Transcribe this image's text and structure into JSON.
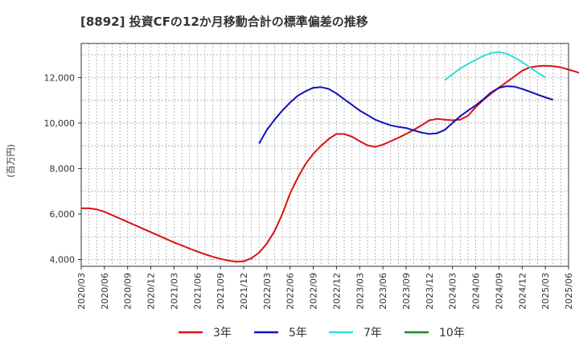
{
  "chart_data": {
    "type": "line",
    "title": "[8892]  投資CFの12か月移動合計の標準偏差の推移",
    "ylabel": "(百万円)",
    "xlabel": "",
    "ylim": [
      3700,
      13500
    ],
    "yticks": [
      4000,
      6000,
      8000,
      10000,
      12000
    ],
    "ytick_labels": [
      "4,000",
      "6,000",
      "8,000",
      "10,000",
      "12,000"
    ],
    "x_range": [
      "2020/03",
      "2025/06"
    ],
    "xtick_labels": [
      "2020/03",
      "2020/06",
      "2020/09",
      "2020/12",
      "2021/03",
      "2021/06",
      "2021/09",
      "2021/12",
      "2022/03",
      "2022/06",
      "2022/09",
      "2022/12",
      "2023/03",
      "2023/06",
      "2023/09",
      "2023/12",
      "2024/03",
      "2024/06",
      "2024/09",
      "2024/12",
      "2025/03",
      "2025/06"
    ],
    "grid": true,
    "legend_position": "bottom",
    "series": [
      {
        "name": "3年",
        "color": "#dd1111",
        "points": [
          [
            "2020/03",
            6250
          ],
          [
            "2020/04",
            6250
          ],
          [
            "2020/05",
            6200
          ],
          [
            "2020/06",
            6100
          ],
          [
            "2020/07",
            5950
          ],
          [
            "2020/08",
            5800
          ],
          [
            "2020/09",
            5650
          ],
          [
            "2020/10",
            5500
          ],
          [
            "2020/11",
            5350
          ],
          [
            "2020/12",
            5200
          ],
          [
            "2021/01",
            5050
          ],
          [
            "2021/02",
            4900
          ],
          [
            "2021/03",
            4750
          ],
          [
            "2021/04",
            4620
          ],
          [
            "2021/05",
            4480
          ],
          [
            "2021/06",
            4350
          ],
          [
            "2021/07",
            4230
          ],
          [
            "2021/08",
            4120
          ],
          [
            "2021/09",
            4030
          ],
          [
            "2021/10",
            3950
          ],
          [
            "2021/11",
            3900
          ],
          [
            "2021/12",
            3920
          ],
          [
            "2022/01",
            4050
          ],
          [
            "2022/02",
            4300
          ],
          [
            "2022/03",
            4700
          ],
          [
            "2022/04",
            5250
          ],
          [
            "2022/05",
            6000
          ],
          [
            "2022/06",
            6900
          ],
          [
            "2022/07",
            7600
          ],
          [
            "2022/08",
            8200
          ],
          [
            "2022/09",
            8650
          ],
          [
            "2022/10",
            9000
          ],
          [
            "2022/11",
            9300
          ],
          [
            "2022/12",
            9520
          ],
          [
            "2023/01",
            9520
          ],
          [
            "2023/02",
            9400
          ],
          [
            "2023/03",
            9200
          ],
          [
            "2023/04",
            9020
          ],
          [
            "2023/05",
            8950
          ],
          [
            "2023/06",
            9050
          ],
          [
            "2023/07",
            9200
          ],
          [
            "2023/08",
            9350
          ],
          [
            "2023/09",
            9520
          ],
          [
            "2023/10",
            9700
          ],
          [
            "2023/11",
            9900
          ],
          [
            "2023/12",
            10120
          ],
          [
            "2024/01",
            10180
          ],
          [
            "2024/02",
            10150
          ],
          [
            "2024/03",
            10120
          ],
          [
            "2024/04",
            10150
          ],
          [
            "2024/05",
            10320
          ],
          [
            "2024/06",
            10700
          ],
          [
            "2024/07",
            11020
          ],
          [
            "2024/08",
            11300
          ],
          [
            "2024/09",
            11550
          ],
          [
            "2024/10",
            11800
          ],
          [
            "2024/11",
            12050
          ],
          [
            "2024/12",
            12300
          ],
          [
            "2025/01",
            12450
          ],
          [
            "2025/02",
            12500
          ],
          [
            "2025/03",
            12520
          ],
          [
            "2025/04",
            12500
          ],
          [
            "2025/05",
            12450
          ],
          [
            "2025/06",
            12350
          ],
          [
            "2025/07",
            12250
          ],
          [
            "2025/08",
            12120
          ]
        ]
      },
      {
        "name": "5年",
        "color": "#1111bb",
        "points": [
          [
            "2022/02",
            9100
          ],
          [
            "2022/03",
            9700
          ],
          [
            "2022/04",
            10150
          ],
          [
            "2022/05",
            10550
          ],
          [
            "2022/06",
            10900
          ],
          [
            "2022/07",
            11200
          ],
          [
            "2022/08",
            11400
          ],
          [
            "2022/09",
            11550
          ],
          [
            "2022/10",
            11580
          ],
          [
            "2022/11",
            11500
          ],
          [
            "2022/12",
            11300
          ],
          [
            "2023/01",
            11050
          ],
          [
            "2023/02",
            10800
          ],
          [
            "2023/03",
            10550
          ],
          [
            "2023/04",
            10350
          ],
          [
            "2023/05",
            10150
          ],
          [
            "2023/06",
            10020
          ],
          [
            "2023/07",
            9900
          ],
          [
            "2023/08",
            9830
          ],
          [
            "2023/09",
            9780
          ],
          [
            "2023/10",
            9680
          ],
          [
            "2023/11",
            9580
          ],
          [
            "2023/12",
            9520
          ],
          [
            "2024/01",
            9550
          ],
          [
            "2024/02",
            9700
          ],
          [
            "2024/03",
            10000
          ],
          [
            "2024/04",
            10300
          ],
          [
            "2024/05",
            10550
          ],
          [
            "2024/06",
            10780
          ],
          [
            "2024/07",
            11050
          ],
          [
            "2024/08",
            11350
          ],
          [
            "2024/09",
            11550
          ],
          [
            "2024/10",
            11620
          ],
          [
            "2024/11",
            11600
          ],
          [
            "2024/12",
            11500
          ],
          [
            "2025/01",
            11380
          ],
          [
            "2025/02",
            11250
          ],
          [
            "2025/03",
            11130
          ],
          [
            "2025/04",
            11020
          ]
        ]
      },
      {
        "name": "7年",
        "color": "#33dddd",
        "points": [
          [
            "2024/02",
            11880
          ],
          [
            "2024/03",
            12150
          ],
          [
            "2024/04",
            12400
          ],
          [
            "2024/05",
            12600
          ],
          [
            "2024/06",
            12780
          ],
          [
            "2024/07",
            12950
          ],
          [
            "2024/08",
            13080
          ],
          [
            "2024/09",
            13120
          ],
          [
            "2024/10",
            13050
          ],
          [
            "2024/11",
            12880
          ],
          [
            "2024/12",
            12680
          ],
          [
            "2025/01",
            12450
          ],
          [
            "2025/02",
            12220
          ],
          [
            "2025/03",
            12000
          ]
        ]
      },
      {
        "name": "10年",
        "color": "#228822",
        "points": []
      }
    ]
  }
}
